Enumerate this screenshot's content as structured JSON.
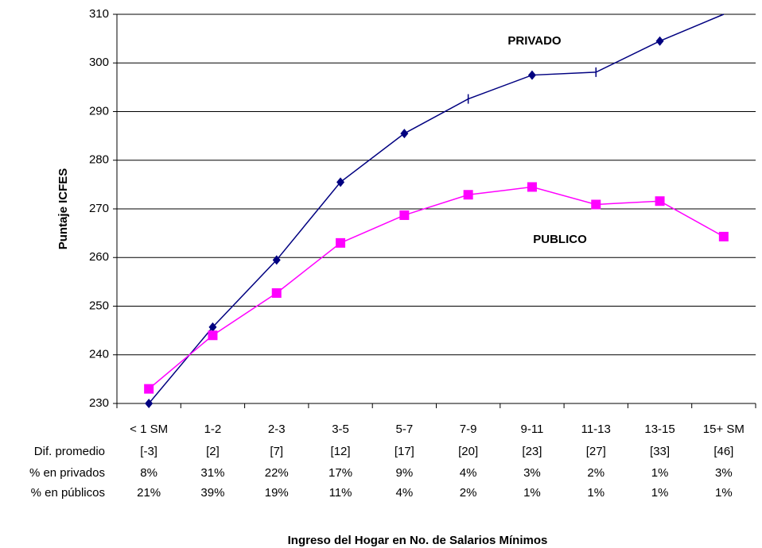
{
  "chart_data": {
    "type": "line",
    "y_label": "Puntaje ICFES",
    "x_label": "Ingreso del Hogar en No. de Salarios Mínimos",
    "categories": [
      "< 1 SM",
      "1-2",
      "2-3",
      "3-5",
      "5-7",
      "7-9",
      "9-11",
      "11-13",
      "13-15",
      "15+ SM"
    ],
    "ylim": [
      230,
      310
    ],
    "yticks": [
      230,
      240,
      250,
      260,
      270,
      280,
      290,
      300,
      310
    ],
    "grid": true,
    "series": [
      {
        "name": "PRIVADO",
        "color": "#000080",
        "values": [
          230,
          245.7,
          259.5,
          275.5,
          285.5,
          292.6,
          297.5,
          298.1,
          304.5,
          310
        ],
        "markers": [
          "diamond",
          "diamond",
          "diamond",
          "diamond",
          "diamond",
          "dash",
          "diamond",
          "dash",
          "diamond",
          "none"
        ]
      },
      {
        "name": "PUBLICO",
        "color": "#ff00ff",
        "values": [
          233,
          244,
          252.7,
          263,
          268.7,
          272.9,
          274.5,
          270.9,
          271.6,
          264.3
        ],
        "markers": [
          "square",
          "square",
          "square",
          "square",
          "square",
          "square",
          "square",
          "square",
          "square",
          "square"
        ]
      }
    ],
    "table": [
      {
        "label": "Dif. promedio",
        "cells": [
          "[-3]",
          "[2]",
          "[7]",
          "[12]",
          "[17]",
          "[20]",
          "[23]",
          "[27]",
          "[33]",
          "[46]"
        ]
      },
      {
        "label": "% en privados",
        "cells": [
          "8%",
          "31%",
          "22%",
          "17%",
          "9%",
          "4%",
          "3%",
          "2%",
          "1%",
          "3%"
        ]
      },
      {
        "label": "% en públicos",
        "cells": [
          "21%",
          "39%",
          "19%",
          "11%",
          "4%",
          "2%",
          "1%",
          "1%",
          "1%",
          "1%"
        ]
      }
    ]
  }
}
